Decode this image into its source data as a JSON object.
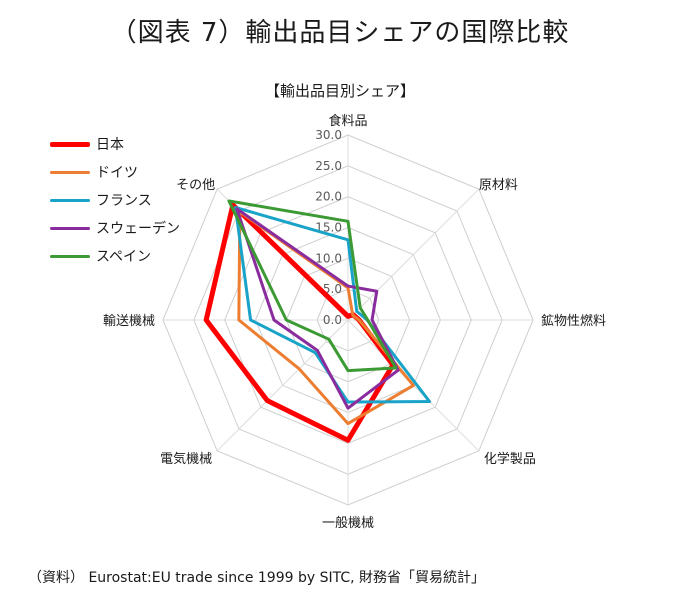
{
  "figure_title": "（図表 7）輸出品目シェアの国際比較",
  "source": "（資料） Eurostat:EU trade since 1999 by SITC, 財務省「貿易統計」",
  "chart_data": {
    "type": "radar",
    "title": "【輸出品目別シェア】",
    "categories": [
      "食料品",
      "原材料",
      "鉱物性燃料",
      "化学製品",
      "一般機械",
      "電気機械",
      "輸送機械",
      "その他"
    ],
    "rlim": [
      0,
      30
    ],
    "ticks": [
      0,
      5,
      10,
      15,
      20,
      25,
      30
    ],
    "tick_labels": [
      "0.0",
      "5.0",
      "10.0",
      "15.0",
      "20.0",
      "25.0",
      "30.0"
    ],
    "grid": true,
    "legend_position": "left",
    "series": [
      {
        "name": "日本",
        "color": "#ff0000",
        "width": 5,
        "values": [
          0.6,
          1.2,
          1.8,
          10.3,
          19.5,
          18.5,
          23.0,
          26.4
        ]
      },
      {
        "name": "ドイツ",
        "color": "#ed7d31",
        "width": 3,
        "values": [
          5.2,
          1.1,
          1.8,
          15.0,
          16.8,
          11.2,
          17.7,
          24.8
        ]
      },
      {
        "name": "フランス",
        "color": "#1aa3c8",
        "width": 3,
        "values": [
          13.0,
          2.0,
          3.1,
          18.7,
          13.3,
          7.5,
          15.8,
          25.8
        ]
      },
      {
        "name": "スウェーデン",
        "color": "#8b2c9e",
        "width": 3,
        "values": [
          5.5,
          6.6,
          3.9,
          11.5,
          14.3,
          7.0,
          12.0,
          25.5
        ]
      },
      {
        "name": "スペイン",
        "color": "#3b9a33",
        "width": 3,
        "values": [
          16.0,
          2.8,
          3.2,
          11.0,
          8.2,
          4.4,
          10.0,
          27.3
        ]
      }
    ]
  }
}
